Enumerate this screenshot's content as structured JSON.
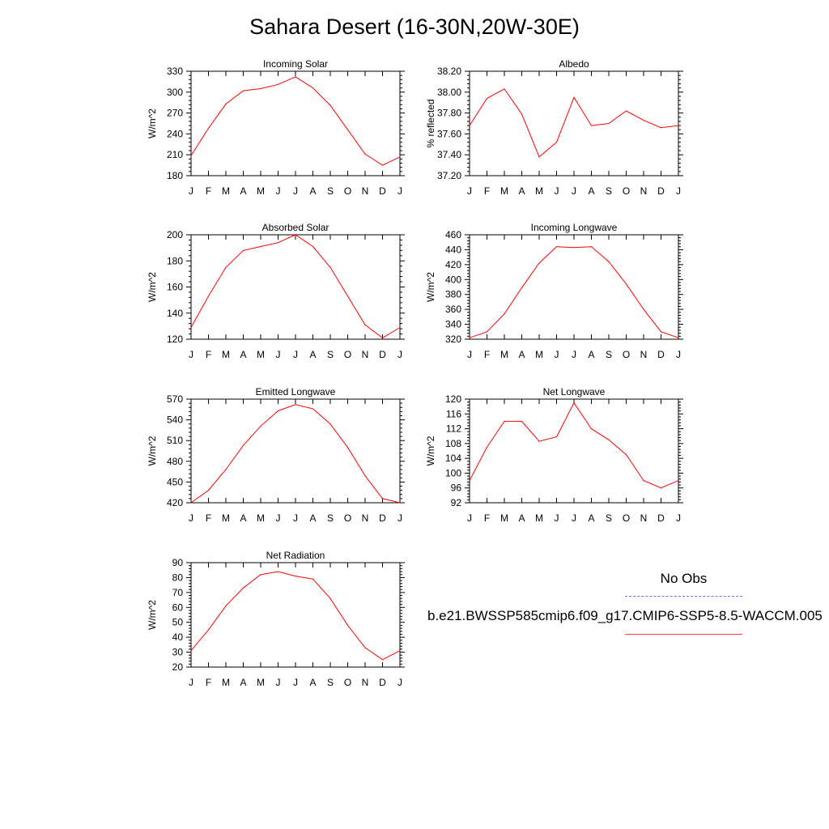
{
  "title": "Sahara Desert (16-30N,20W-30E)",
  "legend": {
    "obs_label": "No Obs",
    "obs_color": "#6b6bff",
    "model_label": "b.e21.BWSSP585cmip6.f09_g17.CMIP6-SSP5-8.5-WACCM.005",
    "model_color": "#ff0000"
  },
  "chart_data": [
    {
      "type": "line",
      "title": "Incoming Solar",
      "xlabel": "",
      "ylabel": "W/m^2",
      "categories": [
        "J",
        "F",
        "M",
        "A",
        "M",
        "J",
        "J",
        "A",
        "S",
        "O",
        "N",
        "D",
        "J"
      ],
      "ylim": [
        180,
        330
      ],
      "yticks": [
        180,
        210,
        240,
        270,
        300,
        330
      ],
      "ytick_labels": [
        "180",
        "210",
        "240",
        "270",
        "300",
        "330"
      ],
      "series": [
        {
          "color": "#ff0000",
          "values": [
            209,
            248,
            283,
            302,
            305,
            311,
            322,
            306,
            281,
            246,
            211,
            195,
            207
          ]
        }
      ],
      "grid": false
    },
    {
      "type": "line",
      "title": "Albedo",
      "xlabel": "",
      "ylabel": "% reflected",
      "categories": [
        "J",
        "F",
        "M",
        "A",
        "M",
        "J",
        "J",
        "A",
        "S",
        "O",
        "N",
        "D",
        "J"
      ],
      "ylim": [
        37.2,
        38.2
      ],
      "yticks": [
        37.2,
        37.4,
        37.6,
        37.8,
        38.0,
        38.2
      ],
      "ytick_labels": [
        "37.20",
        "37.40",
        "37.60",
        "37.80",
        "38.00",
        "38.20"
      ],
      "series": [
        {
          "color": "#ff0000",
          "values": [
            37.68,
            37.94,
            38.03,
            37.79,
            37.38,
            37.52,
            37.95,
            37.68,
            37.7,
            37.82,
            37.73,
            37.66,
            37.68
          ]
        }
      ],
      "grid": false
    },
    {
      "type": "line",
      "title": "Absorbed Solar",
      "xlabel": "",
      "ylabel": "W/m^2",
      "categories": [
        "J",
        "F",
        "M",
        "A",
        "M",
        "J",
        "J",
        "A",
        "S",
        "O",
        "N",
        "D",
        "J"
      ],
      "ylim": [
        120,
        200
      ],
      "yticks": [
        120,
        140,
        160,
        180,
        200
      ],
      "ytick_labels": [
        "120",
        "140",
        "160",
        "180",
        "200"
      ],
      "series": [
        {
          "color": "#ff0000",
          "values": [
            129,
            153,
            175,
            188,
            191,
            194,
            200,
            191,
            175,
            153,
            131,
            121,
            129
          ]
        }
      ],
      "grid": false
    },
    {
      "type": "line",
      "title": "Incoming Longwave",
      "xlabel": "",
      "ylabel": "W/m^2",
      "categories": [
        "J",
        "F",
        "M",
        "A",
        "M",
        "J",
        "J",
        "A",
        "S",
        "O",
        "N",
        "D",
        "J"
      ],
      "ylim": [
        320,
        460
      ],
      "yticks": [
        320,
        340,
        360,
        380,
        400,
        420,
        440,
        460
      ],
      "ytick_labels": [
        "320",
        "340",
        "360",
        "380",
        "400",
        "420",
        "440",
        "460"
      ],
      "series": [
        {
          "color": "#ff0000",
          "values": [
            322,
            330,
            354,
            389,
            422,
            444,
            443,
            444,
            424,
            394,
            360,
            330,
            322
          ]
        }
      ],
      "grid": false
    },
    {
      "type": "line",
      "title": "Emitted Longwave",
      "xlabel": "",
      "ylabel": "W/m^2",
      "categories": [
        "J",
        "F",
        "M",
        "A",
        "M",
        "J",
        "J",
        "A",
        "S",
        "O",
        "N",
        "D",
        "J"
      ],
      "ylim": [
        420,
        570
      ],
      "yticks": [
        420,
        450,
        480,
        510,
        540,
        570
      ],
      "ytick_labels": [
        "420",
        "450",
        "480",
        "510",
        "540",
        "570"
      ],
      "series": [
        {
          "color": "#ff0000",
          "values": [
            420,
            438,
            468,
            503,
            531,
            553,
            562,
            556,
            534,
            500,
            459,
            426,
            420
          ]
        }
      ],
      "grid": false
    },
    {
      "type": "line",
      "title": "Net Longwave",
      "xlabel": "",
      "ylabel": "W/m^2",
      "categories": [
        "J",
        "F",
        "M",
        "A",
        "M",
        "J",
        "J",
        "A",
        "S",
        "O",
        "N",
        "D",
        "J"
      ],
      "ylim": [
        92,
        120
      ],
      "yticks": [
        92,
        96,
        100,
        104,
        108,
        112,
        116,
        120
      ],
      "ytick_labels": [
        "92",
        "96",
        "100",
        "104",
        "108",
        "112",
        "116",
        "120"
      ],
      "series": [
        {
          "color": "#ff0000",
          "values": [
            98,
            107,
            114,
            114,
            108.6,
            109.8,
            119,
            112,
            109,
            105,
            98,
            96,
            98
          ]
        }
      ],
      "grid": false
    },
    {
      "type": "line",
      "title": "Net Radiation",
      "xlabel": "",
      "ylabel": "W/m^2",
      "categories": [
        "J",
        "F",
        "M",
        "A",
        "M",
        "J",
        "J",
        "A",
        "S",
        "O",
        "N",
        "D",
        "J"
      ],
      "ylim": [
        20,
        90
      ],
      "yticks": [
        20,
        30,
        40,
        50,
        60,
        70,
        80,
        90
      ],
      "ytick_labels": [
        "20",
        "30",
        "40",
        "50",
        "60",
        "70",
        "80",
        "90"
      ],
      "series": [
        {
          "color": "#ff0000",
          "values": [
            31,
            45,
            61,
            73,
            82,
            84,
            81,
            79,
            66,
            48,
            33,
            25,
            31
          ]
        }
      ],
      "grid": false
    }
  ]
}
